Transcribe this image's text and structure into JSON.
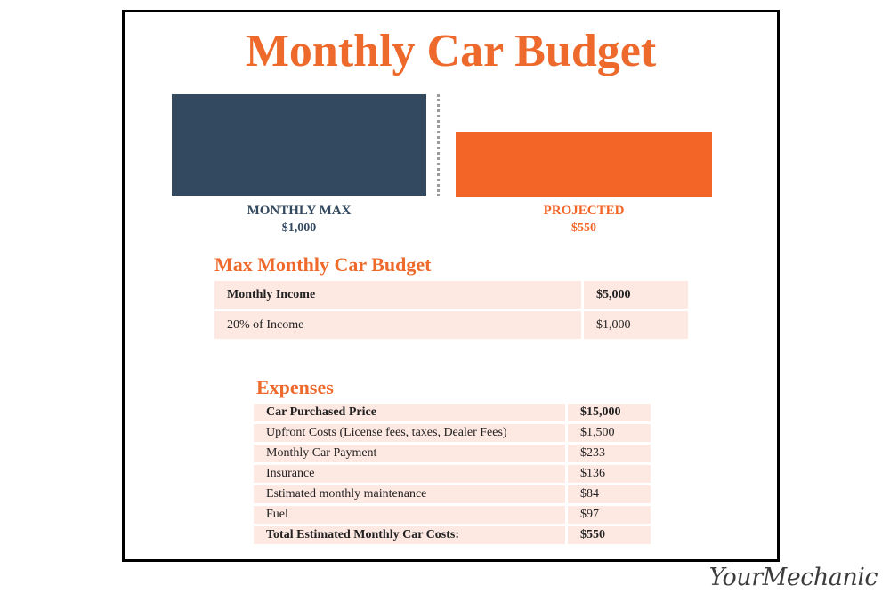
{
  "title": "Monthly Car Budget",
  "colors": {
    "accent": "#ee6a2c",
    "navy": "#33495f",
    "row_bg": "#fde8e2"
  },
  "chart_data": {
    "type": "bar",
    "categories": [
      "MONTHLY MAX",
      "PROJECTED"
    ],
    "values": [
      1000,
      550
    ],
    "value_labels": [
      "$1,000",
      "$550"
    ],
    "colors": [
      "#33495f",
      "#f26527"
    ],
    "title": "Monthly Car Budget",
    "divider_between_bars": true
  },
  "budget": {
    "heading": "Max Monthly Car Budget",
    "rows": [
      {
        "label": "Monthly Income",
        "value": "$5,000",
        "bold": true
      },
      {
        "label": "20% of Income",
        "value": "$1,000",
        "bold": false
      }
    ]
  },
  "expenses": {
    "heading": "Expenses",
    "rows": [
      {
        "label": "Car Purchased Price",
        "value": "$15,000",
        "bold": true
      },
      {
        "label": "Upfront Costs (License fees, taxes, Dealer Fees)",
        "value": "$1,500",
        "bold": false
      },
      {
        "label": "Monthly Car Payment",
        "value": "$233",
        "bold": false
      },
      {
        "label": "Insurance",
        "value": "$136",
        "bold": false
      },
      {
        "label": "Estimated monthly maintenance",
        "value": "$84",
        "bold": false
      },
      {
        "label": "Fuel",
        "value": "$97",
        "bold": false
      },
      {
        "label": "Total Estimated Monthly Car Costs:",
        "value": "$550",
        "bold": true
      }
    ]
  },
  "watermark": "YourMechanic"
}
